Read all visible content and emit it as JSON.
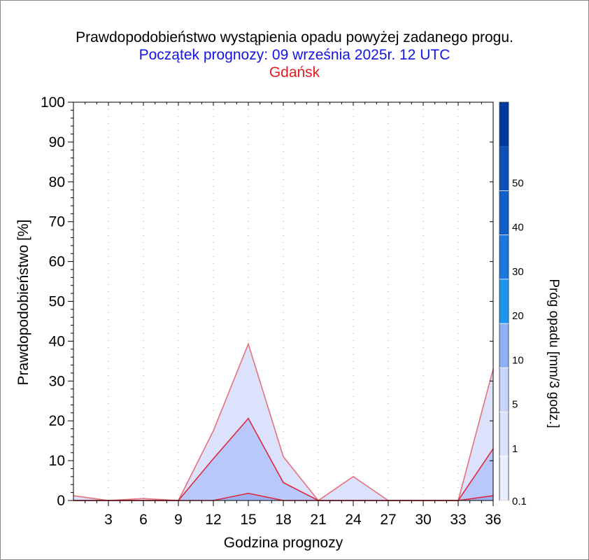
{
  "titles": {
    "main": "Prawdopodobieństwo wystąpienia opadu powyżej zadanego progu.",
    "start": "Początek prognozy: 09 września 2025r. 12 UTC",
    "location": "Gdańsk"
  },
  "chart_data": {
    "type": "area",
    "xlabel": "Godzina prognozy",
    "ylabel": "Prawdopodobieństwo [%]",
    "xlim": [
      0,
      36
    ],
    "ylim": [
      0,
      100
    ],
    "x_ticks": [
      "3",
      "6",
      "9",
      "12",
      "15",
      "18",
      "21",
      "24",
      "27",
      "30",
      "33",
      "36"
    ],
    "y_ticks": [
      "0",
      "10",
      "20",
      "30",
      "40",
      "50",
      "60",
      "70",
      "80",
      "90",
      "100"
    ],
    "x": [
      0,
      3,
      6,
      9,
      12,
      15,
      18,
      21,
      24,
      27,
      30,
      33,
      36
    ],
    "series": [
      {
        "name": "0.1",
        "color": "#dce2fc",
        "values": [
          1.2,
          0,
          0.5,
          0,
          17.5,
          39.3,
          11,
          0,
          6,
          0,
          0,
          0,
          33
        ]
      },
      {
        "name": "1",
        "color": "#b8c8fa",
        "values": [
          0,
          0,
          0,
          0,
          10.5,
          20.6,
          4.5,
          0,
          0,
          0,
          0,
          0,
          13
        ]
      },
      {
        "name": "5",
        "color": "#9bb2f6",
        "values": [
          0,
          0,
          0,
          0,
          0,
          1.8,
          0,
          0,
          0,
          0,
          0,
          0,
          1.2
        ]
      }
    ],
    "colorbar": {
      "label": "Próg opadu [mm/3 godz.]",
      "tick_labels": [
        "0.1",
        "1",
        "5",
        "10",
        "20",
        "30",
        "40",
        "50"
      ],
      "colors": [
        "#ebeefe",
        "#dce2fc",
        "#c9d4fb",
        "#8fb0f6",
        "#1e96f0",
        "#1a78e0",
        "#1060cc",
        "#0a50b8",
        "#003a9e"
      ]
    },
    "grid": true
  }
}
